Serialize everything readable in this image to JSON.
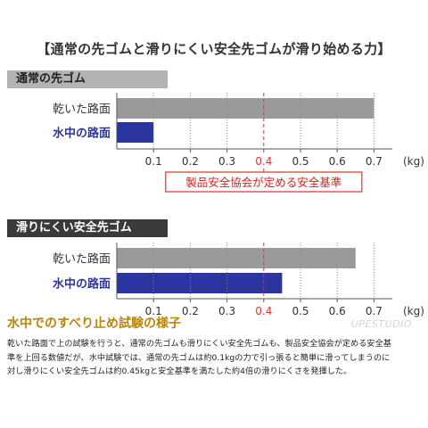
{
  "title": "【通常の先ゴムと滑りにくい安全先ゴムが滑り始める力】",
  "chart_data": [
    {
      "type": "bar",
      "orientation": "horizontal",
      "panel_label": "通常の先ゴム",
      "categories": [
        "乾いた路面",
        "水中の路面"
      ],
      "values": [
        0.7,
        0.1
      ],
      "colors": [
        "#9a9a9a",
        "#2b35a0"
      ],
      "xticks": [
        "0.1",
        "0.2",
        "0.3",
        "0.4",
        "0.5",
        "0.6",
        "0.7"
      ],
      "unit": "(kg)",
      "xlim": [
        0,
        0.75
      ],
      "reference_line": {
        "value": 0.4,
        "color": "#e03030",
        "label": "製品安全協会が定める安全基準"
      }
    },
    {
      "type": "bar",
      "orientation": "horizontal",
      "panel_label": "滑りにくい安全先ゴム",
      "categories": [
        "乾いた路面",
        "水中の路面"
      ],
      "values": [
        0.65,
        0.45
      ],
      "colors": [
        "#9a9a9a",
        "#2b35a0"
      ],
      "xticks": [
        "0.1",
        "0.2",
        "0.3",
        "0.4",
        "0.5",
        "0.6",
        "0.7"
      ],
      "unit": "(kg)",
      "xlim": [
        0,
        0.75
      ],
      "reference_line": {
        "value": 0.4,
        "color": "#e03030"
      }
    }
  ],
  "section_heading": "水中でのすべり止め試験の様子",
  "watermark": "UPESTUDIO",
  "body_lines": [
    "乾いた路面で上の試験を行うと、通常の先ゴムも滑りにくい安全先ゴムも、製品安全協会が定める安全基",
    "準を上回る数値だが、水中試験では、通常の先ゴムは約0.1kgの力で引っ張ると簡単に滑ってしまうのに",
    "対し滑りにくい安全先ゴムは約0.45kgと安全基準を満たした約4倍の滑りにくさを発揮した。"
  ]
}
